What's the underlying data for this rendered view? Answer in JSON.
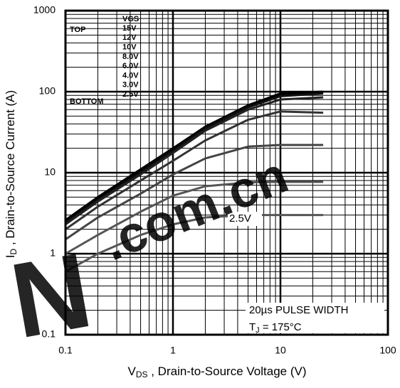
{
  "chart_data": {
    "type": "line",
    "x_label": {
      "main": "V",
      "sub": "DS",
      "rest": " , Drain-to-Source Voltage (V)"
    },
    "y_label": {
      "main": "I",
      "sub": "D",
      "rest": " , Drain-to-Source Current (A)"
    },
    "log_x": true,
    "log_y": true,
    "grid": true,
    "xlim": [
      0.1,
      100
    ],
    "xticks": [
      0.1,
      1,
      10,
      100
    ],
    "ylim": [
      0.1,
      1000
    ],
    "yticks": [
      0.1,
      1,
      10,
      100,
      1000
    ],
    "legend_title": "VGS",
    "legend_top": "TOP",
    "legend_bottom": "BOTTOM",
    "x": [
      0.1,
      0.2,
      0.5,
      1,
      2,
      5,
      10,
      25
    ],
    "series": [
      {
        "name": "15V",
        "color": "#000000",
        "values": [
          2.6,
          5,
          11,
          20,
          37,
          68,
          95,
          100
        ]
      },
      {
        "name": "12V",
        "color": "#000000",
        "values": [
          2.5,
          4.8,
          10.5,
          19,
          36,
          66,
          92,
          98
        ]
      },
      {
        "name": "10V",
        "color": "#111111",
        "values": [
          2.4,
          4.6,
          10,
          18.5,
          35,
          64,
          88,
          95
        ]
      },
      {
        "name": "8.0V",
        "color": "#222222",
        "values": [
          2.3,
          4.4,
          9.5,
          17.5,
          33,
          60,
          80,
          85
        ]
      },
      {
        "name": "6.0V",
        "color": "#333333",
        "values": [
          2.0,
          3.8,
          8,
          14,
          25,
          45,
          57,
          55
        ]
      },
      {
        "name": "4.0V",
        "color": "#444444",
        "values": [
          1.5,
          2.8,
          5.5,
          9.5,
          15,
          21,
          22,
          22
        ]
      },
      {
        "name": "3.0V",
        "color": "#555555",
        "values": [
          1.0,
          1.7,
          3.3,
          5.2,
          6.8,
          7.6,
          7.7,
          7.7
        ]
      },
      {
        "name": "2.5V",
        "color": "#555555",
        "values": [
          0.6,
          1.0,
          1.7,
          2.3,
          2.8,
          3.0,
          3.0,
          3.0
        ]
      }
    ],
    "curve_label": "2.5V",
    "pulse_note": "20µs PULSE WIDTH",
    "temp_note": {
      "main": "T",
      "sub": "J",
      "rest": " = 175°C"
    },
    "watermark": [
      "N",
      ".com.cn"
    ]
  }
}
